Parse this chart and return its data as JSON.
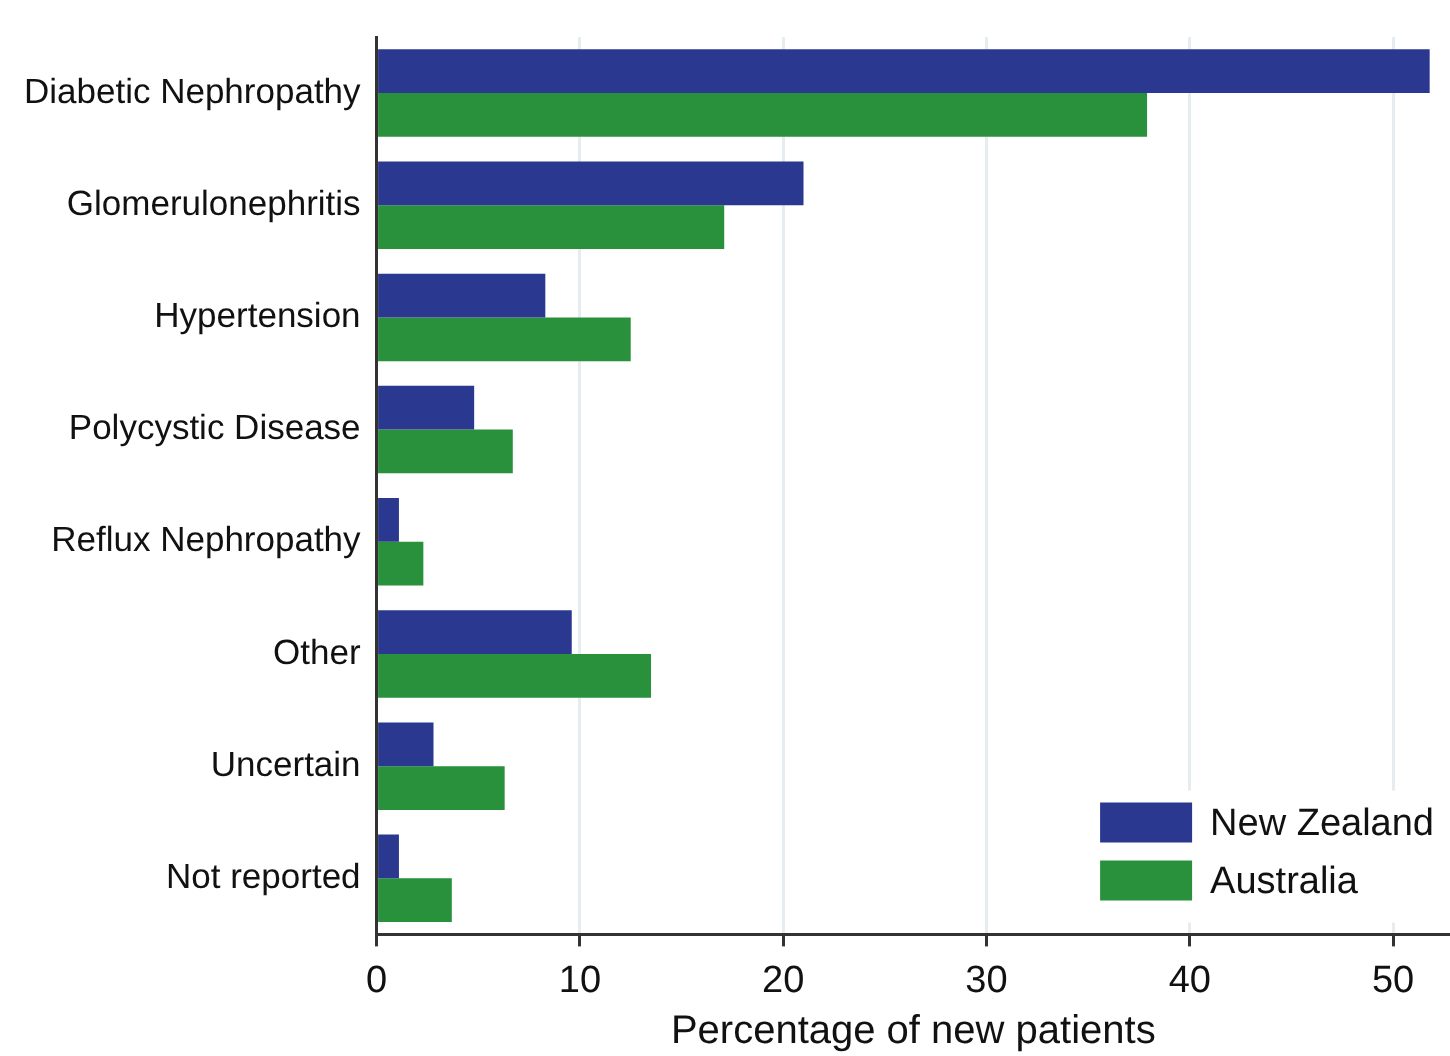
{
  "chart_data": {
    "type": "bar",
    "orientation": "horizontal",
    "xlabel": "Percentage of new patients",
    "categories": [
      "Diabetic Nephropathy",
      "Glomerulonephritis",
      "Hypertension",
      "Polycystic Disease",
      "Reflux Nephropathy",
      "Other",
      "Uncertain",
      "Not reported"
    ],
    "series": [
      {
        "name": "New Zealand",
        "color": "#2b388f",
        "values": [
          51.8,
          21.0,
          8.3,
          4.8,
          1.1,
          9.6,
          2.8,
          1.1
        ]
      },
      {
        "name": "Australia",
        "color": "#29903b",
        "values": [
          37.9,
          17.1,
          12.5,
          6.7,
          2.3,
          13.5,
          6.3,
          3.7
        ]
      }
    ],
    "xlim": [
      0,
      52.8
    ],
    "xticks": [
      0,
      10,
      20,
      30,
      40,
      50
    ],
    "grid": "x",
    "legend": "bottom right"
  }
}
